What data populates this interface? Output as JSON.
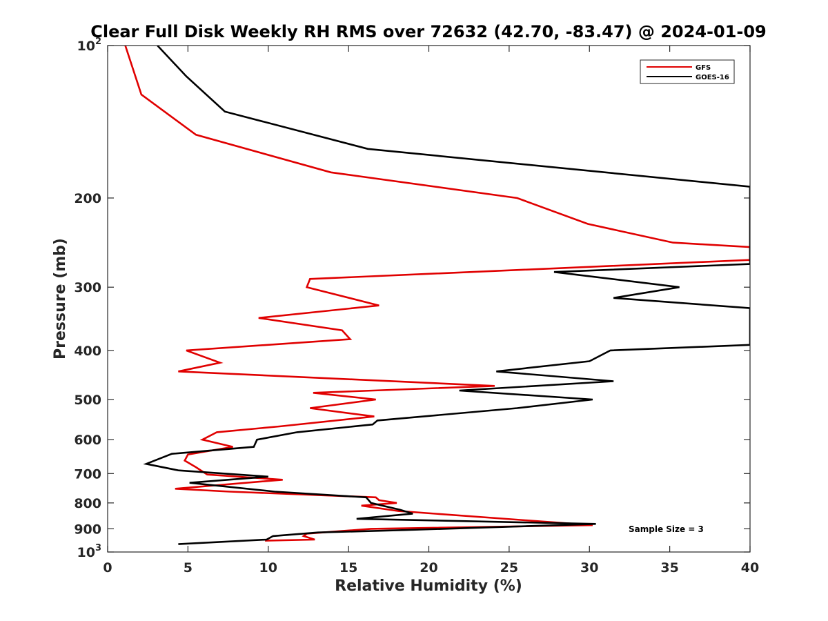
{
  "chart_data": {
    "type": "line",
    "title": "Clear Full Disk Weekly RH RMS over 72632 (42.70, -83.47) @ 2024-01-09",
    "xlabel": "Relative Humidity (%)",
    "ylabel": "Pressure (mb)",
    "xlim": [
      0,
      40
    ],
    "ylim": [
      100,
      1000
    ],
    "yscale": "log",
    "y_reversed": true,
    "grid": false,
    "legend_position": "top-right",
    "x_ticks": [
      "0",
      "5",
      "10",
      "15",
      "20",
      "25",
      "30",
      "35",
      "40"
    ],
    "y_ticks": [
      {
        "value": 100,
        "base": "10",
        "exp": "2"
      },
      {
        "value": 200,
        "label": "200"
      },
      {
        "value": 300,
        "label": "300"
      },
      {
        "value": 400,
        "label": "400"
      },
      {
        "value": 500,
        "label": "500"
      },
      {
        "value": 600,
        "label": "600"
      },
      {
        "value": 700,
        "label": "700"
      },
      {
        "value": 800,
        "label": "800"
      },
      {
        "value": 900,
        "label": "900"
      },
      {
        "value": 1000,
        "base": "10",
        "exp": "3"
      }
    ],
    "annotation": "Sample Size = 3",
    "series": [
      {
        "name": "GFS",
        "color": "#e00000",
        "x": [
          1.1,
          2.1,
          5.5,
          13.9,
          25.5,
          29.9,
          35.2,
          40.0,
          40.0,
          12.6,
          12.4,
          16.9,
          9.4,
          14.6,
          15.1,
          4.9,
          7.0,
          4.4,
          24.1,
          12.8,
          16.7,
          12.6,
          16.6,
          10.7,
          6.8,
          5.9,
          7.8,
          5.0,
          4.8,
          5.5,
          6.2,
          10.9,
          4.2,
          7.6,
          16.7,
          16.9,
          18.0,
          15.8,
          18.1,
          30.2,
          16.4,
          12.4,
          12.2,
          12.9,
          9.8
        ],
        "y": [
          100,
          125,
          150,
          178,
          200,
          225,
          245,
          250,
          265,
          289,
          300,
          326,
          345,
          365,
          380,
          400,
          423,
          440,
          470,
          485,
          500,
          520,
          540,
          565,
          580,
          600,
          620,
          642,
          660,
          680,
          703,
          720,
          750,
          760,
          780,
          790,
          800,
          810,
          830,
          885,
          900,
          920,
          930,
          945,
          950
        ]
      },
      {
        "name": "GOES-16",
        "color": "#000000",
        "x": [
          3.1,
          4.9,
          7.3,
          16.2,
          40.0,
          40.0,
          27.8,
          35.6,
          31.5,
          40.0,
          40.0,
          31.3,
          30.0,
          24.2,
          31.5,
          21.9,
          30.2,
          25.5,
          16.8,
          16.5,
          11.8,
          9.3,
          9.1,
          4.0,
          2.4,
          4.4,
          10.0,
          5.1,
          10.4,
          16.1,
          16.4,
          18.2,
          19.0,
          15.5,
          30.4,
          18.5,
          13.1,
          10.3,
          9.9,
          4.4
        ],
        "y": [
          100,
          115,
          135,
          160,
          190,
          270,
          280,
          300,
          315,
          330,
          390,
          400,
          420,
          440,
          460,
          480,
          500,
          520,
          550,
          560,
          580,
          600,
          620,
          640,
          670,
          690,
          710,
          730,
          760,
          780,
          800,
          825,
          840,
          860,
          880,
          905,
          915,
          930,
          945,
          965
        ]
      }
    ]
  }
}
